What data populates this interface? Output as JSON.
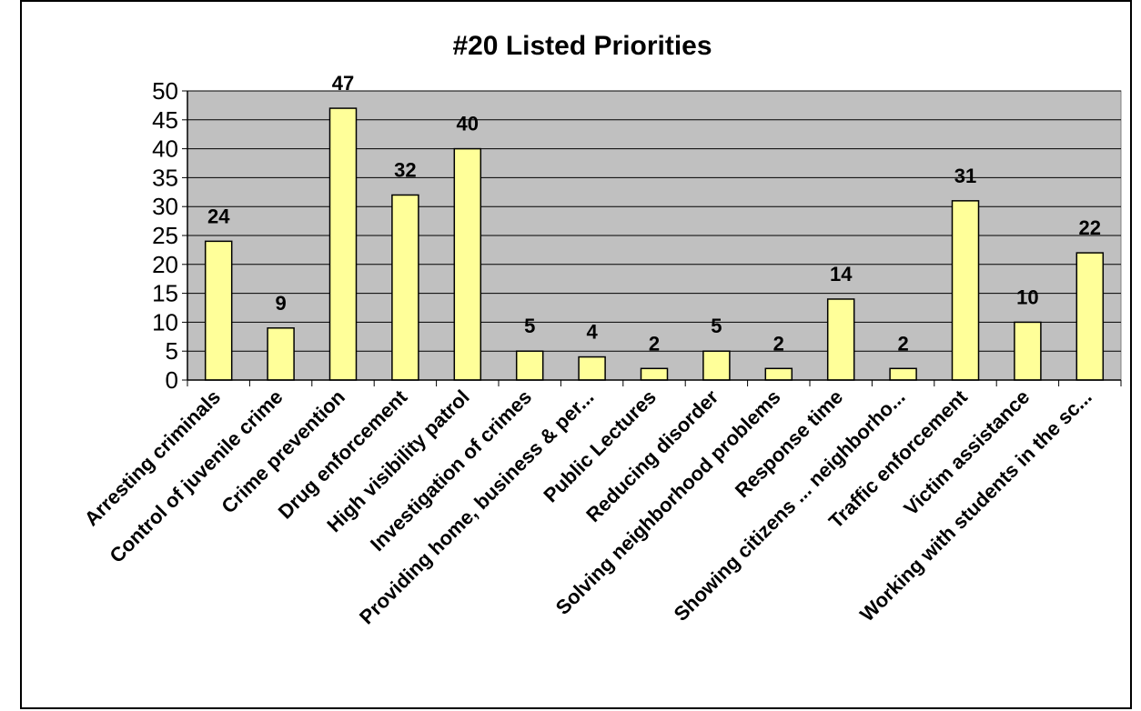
{
  "chart_data": {
    "type": "bar",
    "title": "#20  Listed Priorities",
    "xlabel": "",
    "ylabel": "",
    "ylim": [
      0,
      50
    ],
    "yticks": [
      0,
      5,
      10,
      15,
      20,
      25,
      30,
      35,
      40,
      45,
      50
    ],
    "grid": true,
    "legend": "none",
    "categories": [
      "Arresting criminals",
      "Control of juvenile crime",
      "Crime prevention",
      "Drug enforcement",
      "High visibility patrol",
      "Investigation of crimes",
      "Providing home, business & per...",
      "Public Lectures",
      "Reducing disorder",
      "Solving neighborhood problems",
      "Response time",
      "Showing citizens ... neighborho...",
      "Traffic enforcement",
      "Victim assistance",
      "Working with students in the sc..."
    ],
    "values": [
      24,
      9,
      47,
      32,
      40,
      5,
      4,
      2,
      5,
      2,
      14,
      2,
      31,
      10,
      22
    ],
    "colors": {
      "plot_background": "#c0c0c0",
      "bar_fill": "#ffff99",
      "bar_stroke": "#000000",
      "gridline": "#000000"
    }
  }
}
